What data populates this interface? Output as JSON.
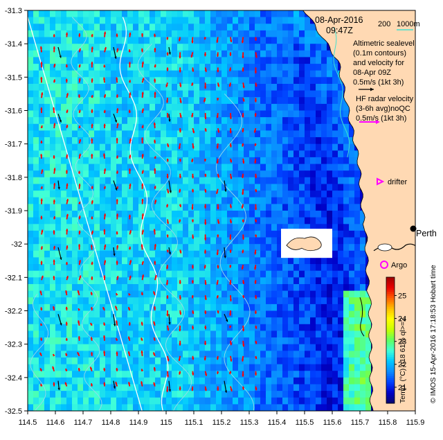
{
  "map": {
    "date": "08-Apr-2016",
    "time": "09:47Z",
    "depth_legend": {
      "shallow": "200",
      "deep": "1000m"
    },
    "altimetry_note": [
      "Altimetric sealevel",
      "(0.1m contours)",
      "and velocity for",
      "08-Apr 09Z",
      "0.5m/s (1kt 3h)"
    ],
    "hf_radar_note": [
      "HF radar velocity",
      "(3-6h avg)noQC",
      "0.5m/s (1kt 3h)"
    ],
    "drifter_label": "drifter",
    "argo_label": "Argo",
    "city_label": "Perth",
    "credit": "© IMOS 15-Apr-2016 17:18:53 Hobart time",
    "colorbar": {
      "label": "Temp. (°C) n18 61% ql>=2",
      "ticks": [
        "21",
        "22",
        "23",
        "24",
        "25"
      ],
      "range": [
        20.3,
        25.8
      ],
      "colors": [
        "#08086e",
        "#0000c8",
        "#0040ff",
        "#0a8cff",
        "#00c8ff",
        "#40ffd8",
        "#60ff60",
        "#c8ff00",
        "#ffff00",
        "#ffc000",
        "#ff6000",
        "#e80000",
        "#a00000"
      ]
    },
    "x_axis": {
      "ticks": [
        "114.5",
        "114.6",
        "114.7",
        "114.8",
        "114.9",
        "115",
        "115.1",
        "115.2",
        "115.3",
        "115.4",
        "115.5",
        "115.6",
        "115.7",
        "115.8",
        "115.9"
      ],
      "range": [
        114.5,
        115.9
      ]
    },
    "y_axis": {
      "ticks": [
        "-31.3",
        "-31.4",
        "-31.5",
        "-31.6",
        "-31.7",
        "-31.8",
        "-31.9",
        "-32",
        "-32.1",
        "-32.2",
        "-32.3",
        "-32.4",
        "-32.5"
      ],
      "range": [
        -32.5,
        -31.3
      ]
    },
    "colors": {
      "land": "#ffd9b3",
      "radar_arrow": "#ff0000",
      "altimetry_arrow": "#000000",
      "contour": "#9ad8e8",
      "isobath_200": "#40e0d0",
      "isobath_1000": "#ffffff",
      "drifter": "#ff00ff",
      "argo": "#ff00ff"
    }
  }
}
